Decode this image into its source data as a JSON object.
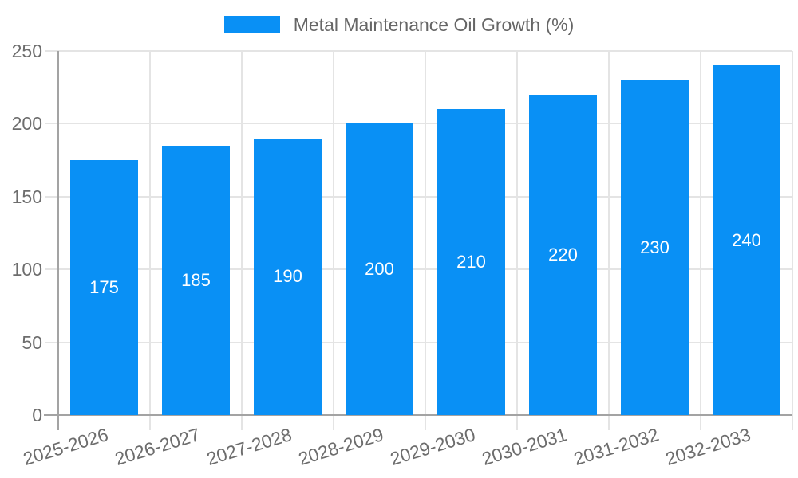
{
  "chart_data": {
    "type": "bar",
    "title": "Metal Maintenance Oil Growth (%)",
    "categories": [
      "2025-2026",
      "2026-2027",
      "2027-2028",
      "2028-2029",
      "2029-2030",
      "2030-2031",
      "2031-2032",
      "2032-2033"
    ],
    "values": [
      175,
      185,
      190,
      200,
      210,
      220,
      230,
      240
    ],
    "series": [
      {
        "name": "Metal Maintenance Oil Growth (%)",
        "values": [
          175,
          185,
          190,
          200,
          210,
          220,
          230,
          240
        ]
      }
    ],
    "xlabel": "",
    "ylabel": "",
    "ylim": [
      0,
      250
    ],
    "y_ticks": [
      0,
      50,
      100,
      150,
      200,
      250
    ],
    "grid": true,
    "legend_position": "top-center",
    "x_label_rotation_deg": -17,
    "value_labels_shown": true,
    "colors": {
      "bar": "#0990f5",
      "grid_line": "#e4e4e4",
      "axis_line": "#a3a3a3",
      "tick_text": "#6d6d6d",
      "legend_text": "#666666",
      "value_label_text": "#ffffff",
      "background": "#ffffff"
    }
  }
}
